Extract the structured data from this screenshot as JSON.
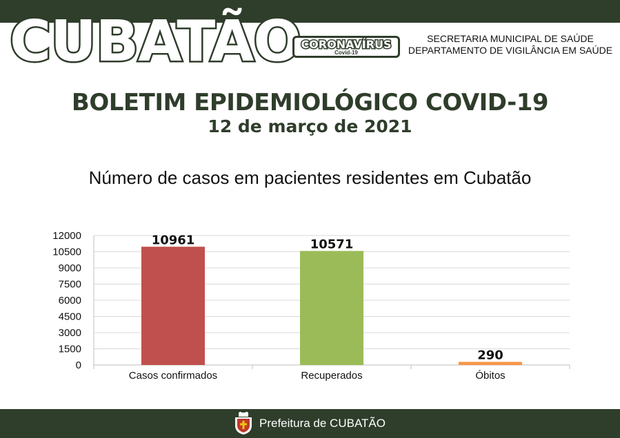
{
  "header": {
    "city": "CUBATÃO",
    "badge_main": "CORONAVÍRUS",
    "badge_sub": "Covid-19",
    "dept_line1": "SECRETARIA MUNICIPAL DE SAÚDE",
    "dept_line2": "DEPARTAMENTO DE VIGILÂNCIA EM SAÚDE"
  },
  "bulletin": {
    "title": "BOLETIM EPIDEMIOLÓGICO COVID-19",
    "date": "12 de março de 2021"
  },
  "chart_data": {
    "type": "bar",
    "title": "Número de casos em pacientes residentes em Cubatão",
    "categories": [
      "Casos confirmados",
      "Recuperados",
      "Óbitos"
    ],
    "values": [
      10961,
      10571,
      290
    ],
    "colors": [
      "#c0504d",
      "#9bbb59",
      "#f79646"
    ],
    "yticks": [
      0,
      1500,
      3000,
      4500,
      6000,
      7500,
      9000,
      10500,
      12000
    ],
    "ylim": [
      0,
      12000
    ],
    "grid": true,
    "legend": "none",
    "data_labels": true
  },
  "footer": {
    "text": "Prefeitura de CUBATÃO",
    "crest_icon": "city-crest-icon"
  },
  "colors": {
    "brand_dark": "#2f3d2b"
  }
}
